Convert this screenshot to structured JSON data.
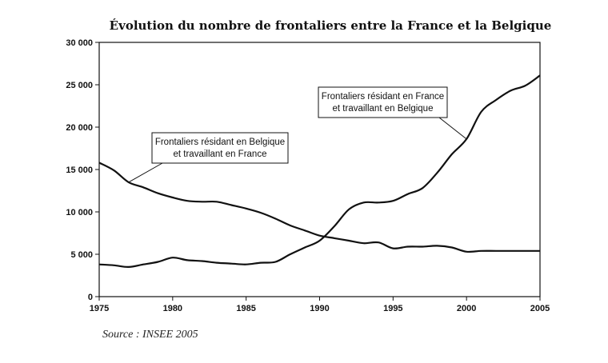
{
  "chart_data": {
    "type": "line",
    "title": "Évolution du nombre de frontaliers entre la France et la Belgique",
    "source": "Source : INSEE 2005",
    "xlabel": "",
    "ylabel": "",
    "xlim": [
      1975,
      2005
    ],
    "ylim": [
      0,
      30000
    ],
    "x_ticks": [
      "1975",
      "1980",
      "1985",
      "1990",
      "1995",
      "2000",
      "2005"
    ],
    "y_ticks": [
      "0",
      "5 000",
      "10 000",
      "15 000",
      "20 000",
      "25 000",
      "30 000"
    ],
    "grid": false,
    "x": [
      1975,
      1976,
      1977,
      1978,
      1979,
      1980,
      1981,
      1982,
      1983,
      1984,
      1985,
      1986,
      1987,
      1988,
      1989,
      1990,
      1991,
      1992,
      1993,
      1994,
      1995,
      1996,
      1997,
      1998,
      1999,
      2000,
      2001,
      2002,
      2003,
      2004,
      2005
    ],
    "series": [
      {
        "name": "Frontaliers résidant en Belgique et travaillant en France",
        "label_lines": [
          "Frontaliers résidant en Belgique",
          "et travaillant en France"
        ],
        "values": [
          15800,
          14900,
          13500,
          12900,
          12200,
          11700,
          11300,
          11200,
          11200,
          10800,
          10400,
          9900,
          9200,
          8400,
          7800,
          7200,
          6900,
          6600,
          6300,
          6400,
          5700,
          5900,
          5900,
          6000,
          5800,
          5300,
          5400,
          5400,
          5400,
          5400,
          5400
        ]
      },
      {
        "name": "Frontaliers résidant en France et travaillant en Belgique",
        "label_lines": [
          "Frontaliers résidant en France",
          "et travaillant en Belgique"
        ],
        "values": [
          3800,
          3700,
          3500,
          3800,
          4100,
          4600,
          4300,
          4200,
          4000,
          3900,
          3800,
          4000,
          4100,
          5000,
          5800,
          6600,
          8300,
          10300,
          11100,
          11100,
          11300,
          12100,
          12800,
          14600,
          16800,
          18600,
          21800,
          23200,
          24300,
          24900,
          26100
        ]
      }
    ]
  }
}
